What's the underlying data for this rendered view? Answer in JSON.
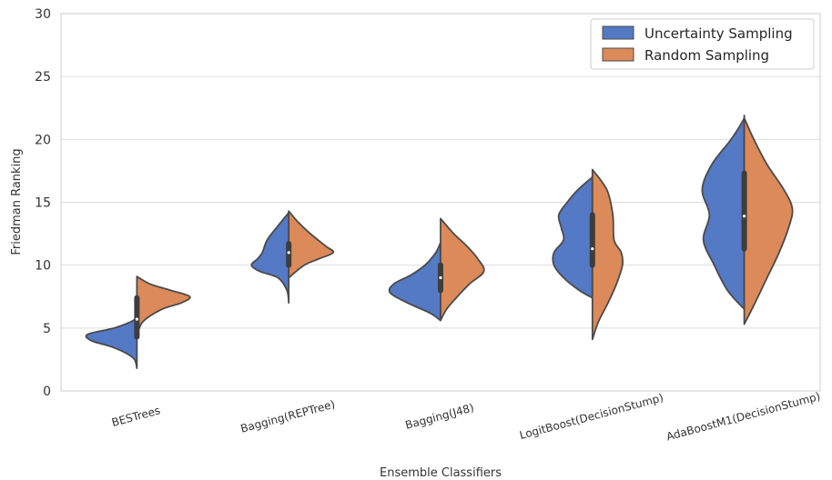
{
  "chart_data": {
    "type": "violin",
    "xlabel": "Ensemble Classifiers",
    "ylabel": "Friedman Ranking",
    "ylim": [
      0,
      30
    ],
    "yticks": [
      "0",
      "5",
      "10",
      "15",
      "20",
      "25",
      "30"
    ],
    "grid": true,
    "legend_position": "top-right",
    "categories": [
      "BESTrees",
      "Bagging(REPTree)",
      "Bagging(J48)",
      "LogitBoost(DecisionStump)",
      "AdaBoostM1(DecisionStump)"
    ],
    "colors": {
      "uncertainty": "#5479c5",
      "random": "#dc8a5a",
      "outline": "#4a4a4a"
    },
    "series": [
      {
        "name": "Uncertainty Sampling",
        "side": "left",
        "violins": [
          {
            "min": 1.8,
            "max": 5.8,
            "profile": [
              [
                1.8,
                0.0
              ],
              [
                2.5,
                0.04
              ],
              [
                3.0,
                0.18
              ],
              [
                3.5,
                0.42
              ],
              [
                4.0,
                0.76
              ],
              [
                4.5,
                0.82
              ],
              [
                5.0,
                0.38
              ],
              [
                5.5,
                0.1
              ],
              [
                5.8,
                0.0
              ]
            ]
          },
          {
            "min": 7.0,
            "max": 14.2,
            "profile": [
              [
                7.0,
                0.0
              ],
              [
                8.0,
                0.03
              ],
              [
                9.0,
                0.18
              ],
              [
                9.5,
                0.48
              ],
              [
                10.0,
                0.62
              ],
              [
                10.5,
                0.52
              ],
              [
                11.0,
                0.44
              ],
              [
                12.0,
                0.36
              ],
              [
                13.0,
                0.2
              ],
              [
                14.0,
                0.03
              ],
              [
                14.2,
                0.0
              ]
            ]
          },
          {
            "min": 5.6,
            "max": 11.8,
            "profile": [
              [
                5.6,
                0.0
              ],
              [
                6.2,
                0.18
              ],
              [
                7.0,
                0.55
              ],
              [
                7.8,
                0.84
              ],
              [
                8.5,
                0.78
              ],
              [
                9.2,
                0.5
              ],
              [
                10.0,
                0.26
              ],
              [
                11.0,
                0.08
              ],
              [
                11.8,
                0.0
              ]
            ]
          },
          {
            "min": 7.4,
            "max": 17.0,
            "profile": [
              [
                7.4,
                0.0
              ],
              [
                8.0,
                0.22
              ],
              [
                9.0,
                0.48
              ],
              [
                10.0,
                0.64
              ],
              [
                11.0,
                0.64
              ],
              [
                12.0,
                0.48
              ],
              [
                13.0,
                0.52
              ],
              [
                14.0,
                0.56
              ],
              [
                15.0,
                0.42
              ],
              [
                16.0,
                0.24
              ],
              [
                17.0,
                0.0
              ]
            ]
          },
          {
            "min": 6.5,
            "max": 21.9,
            "profile": [
              [
                6.5,
                0.0
              ],
              [
                8.0,
                0.28
              ],
              [
                10.0,
                0.5
              ],
              [
                12.0,
                0.68
              ],
              [
                14.0,
                0.58
              ],
              [
                16.0,
                0.7
              ],
              [
                18.0,
                0.54
              ],
              [
                20.0,
                0.22
              ],
              [
                21.5,
                0.02
              ],
              [
                21.9,
                0.0
              ]
            ]
          }
        ]
      },
      {
        "name": "Random Sampling",
        "side": "right",
        "violins": [
          {
            "min": 4.4,
            "max": 9.1,
            "profile": [
              [
                4.4,
                0.0
              ],
              [
                5.5,
                0.1
              ],
              [
                6.5,
                0.42
              ],
              [
                7.0,
                0.74
              ],
              [
                7.5,
                0.88
              ],
              [
                8.0,
                0.56
              ],
              [
                8.5,
                0.22
              ],
              [
                9.1,
                0.0
              ]
            ]
          },
          {
            "min": 9.0,
            "max": 14.3,
            "profile": [
              [
                9.0,
                0.0
              ],
              [
                10.0,
                0.26
              ],
              [
                10.5,
                0.5
              ],
              [
                11.0,
                0.74
              ],
              [
                11.5,
                0.62
              ],
              [
                12.5,
                0.36
              ],
              [
                13.5,
                0.14
              ],
              [
                14.3,
                0.0
              ]
            ]
          },
          {
            "min": 5.6,
            "max": 13.7,
            "profile": [
              [
                5.6,
                0.0
              ],
              [
                6.5,
                0.1
              ],
              [
                7.5,
                0.28
              ],
              [
                8.5,
                0.48
              ],
              [
                9.5,
                0.72
              ],
              [
                10.5,
                0.62
              ],
              [
                11.5,
                0.44
              ],
              [
                12.5,
                0.22
              ],
              [
                13.7,
                0.0
              ]
            ]
          },
          {
            "min": 4.1,
            "max": 17.6,
            "profile": [
              [
                4.1,
                0.0
              ],
              [
                5.5,
                0.1
              ],
              [
                7.0,
                0.26
              ],
              [
                8.5,
                0.4
              ],
              [
                10.0,
                0.5
              ],
              [
                11.0,
                0.48
              ],
              [
                12.0,
                0.36
              ],
              [
                14.0,
                0.34
              ],
              [
                16.0,
                0.24
              ],
              [
                17.6,
                0.0
              ]
            ]
          },
          {
            "min": 5.3,
            "max": 21.7,
            "profile": [
              [
                5.3,
                0.0
              ],
              [
                7.0,
                0.18
              ],
              [
                9.0,
                0.38
              ],
              [
                11.0,
                0.58
              ],
              [
                13.0,
                0.74
              ],
              [
                14.5,
                0.8
              ],
              [
                16.0,
                0.66
              ],
              [
                18.0,
                0.38
              ],
              [
                20.0,
                0.16
              ],
              [
                21.7,
                0.0
              ]
            ]
          }
        ]
      }
    ],
    "boxes": [
      {
        "q1": 4.3,
        "median": 5.7,
        "q3": 7.4
      },
      {
        "q1": 10.0,
        "median": 11.0,
        "q3": 11.7
      },
      {
        "q1": 8.0,
        "median": 9.0,
        "q3": 10.0
      },
      {
        "q1": 10.0,
        "median": 11.3,
        "q3": 14.0
      },
      {
        "q1": 11.3,
        "median": 13.9,
        "q3": 17.3
      }
    ]
  }
}
